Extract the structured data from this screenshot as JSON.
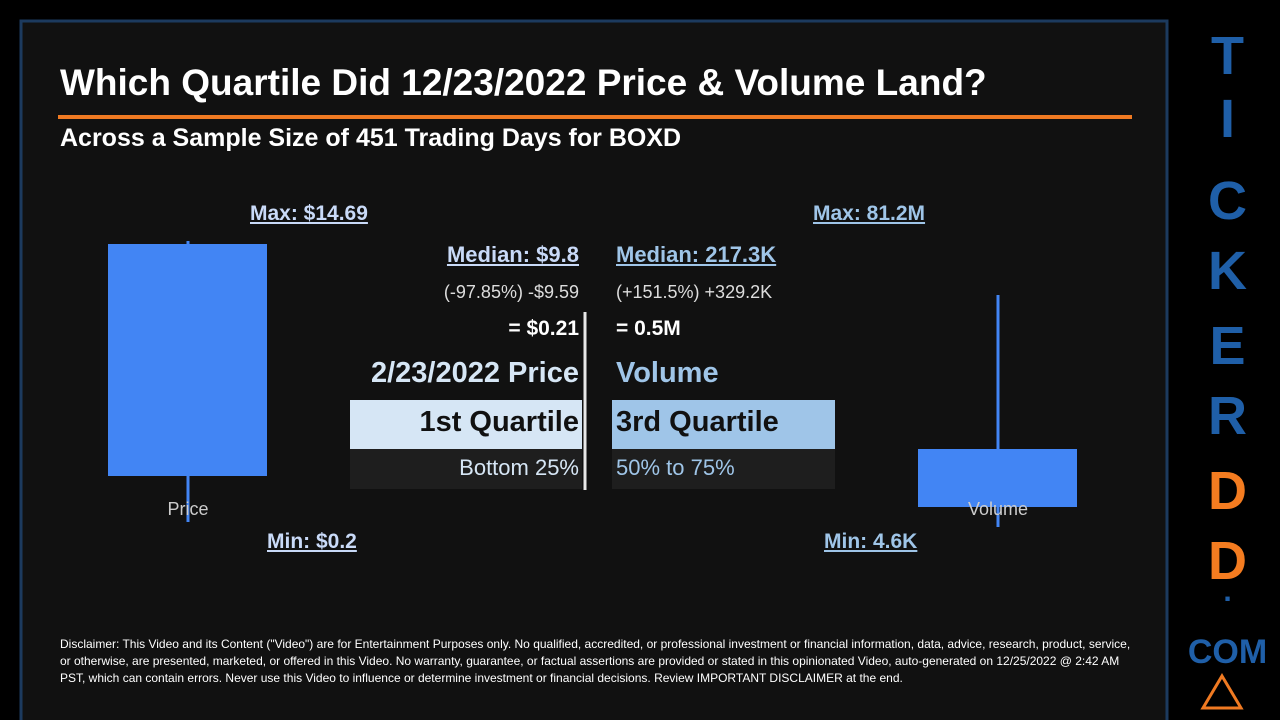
{
  "header": {
    "title": "Which Quartile Did 12/23/2022 Price & Volume Land?",
    "subtitle": "Across a Sample Size of 451 Trading Days for BOXD"
  },
  "price": {
    "max": "Max: $14.69",
    "min": "Min: $0.2",
    "median": "Median: $9.8",
    "change": "(-97.85%) -$9.59",
    "result": "= $0.21",
    "label": "2/23/2022 Price",
    "quartile": "1st Quartile",
    "range": "Bottom 25%",
    "box_label": "Price"
  },
  "volume": {
    "max": "Max: 81.2M",
    "min": "Min: 4.6K",
    "median": "Median: 217.3K",
    "change": "(+151.5%) +329.2K",
    "result": "= 0.5M",
    "label": "Volume",
    "quartile": "3rd Quartile",
    "range": "50% to 75%",
    "box_label": "Volume"
  },
  "disclaimer": "Disclaimer: This Video and its Content (\"Video\") are for Entertainment Purposes only. No qualified, accredited, or professional investment or financial information, data, advice, research, product, service, or otherwise, are presented, marketed, or offered in this Video. No warranty, guarantee, or factual assertions are provided or stated in this opinionated Video, auto-generated on 12/25/2022 @ 2:42 AM PST, which can contain errors. Never use this Video to influence or determine investment or financial decisions. Review IMPORTANT DISCLAIMER at the end.",
  "brand": {
    "letters": [
      "T",
      "I",
      "C",
      "K",
      "E",
      "R",
      "D",
      "D"
    ],
    "dot": ".",
    "com": "COM"
  }
}
